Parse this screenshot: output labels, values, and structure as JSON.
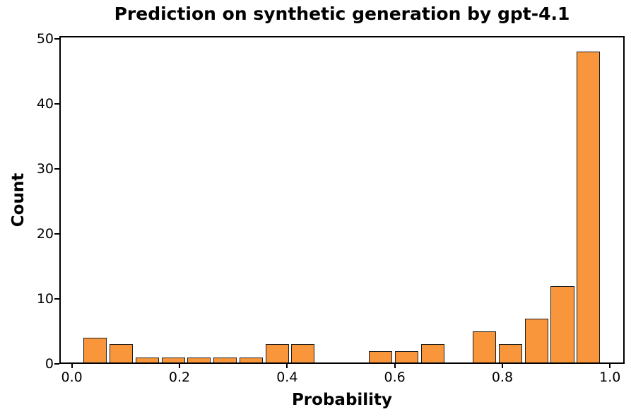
{
  "chart_data": {
    "type": "histogram",
    "title": "Prediction on synthetic generation by gpt-4.1",
    "xlabel": "Probability",
    "ylabel": "Count",
    "bar_color": "#F9963B",
    "bar_edge_color": "#1c1c1c",
    "background_color": "#ffffff",
    "bin_start": 0.0196,
    "bin_width": 0.04822,
    "rwidth": 0.9,
    "counts": [
      4,
      3,
      1,
      1,
      1,
      1,
      1,
      3,
      3,
      0,
      0,
      2,
      2,
      3,
      0,
      5,
      3,
      7,
      12,
      48
    ],
    "bin_edges": [
      0.02,
      0.068,
      0.116,
      0.164,
      0.213,
      0.261,
      0.309,
      0.357,
      0.405,
      0.454,
      0.502,
      0.55,
      0.598,
      0.646,
      0.695,
      0.743,
      0.791,
      0.839,
      0.887,
      0.936,
      0.984
    ],
    "xlim": [
      -0.0232,
      1.0272
    ],
    "ylim": [
      0,
      50.4
    ],
    "x_ticks": {
      "values": [
        0.0,
        0.2,
        0.4,
        0.6,
        0.8,
        1.0
      ],
      "labels": [
        "0.0",
        "0.2",
        "0.4",
        "0.6",
        "0.8",
        "1.0"
      ]
    },
    "y_ticks": {
      "values": [
        0,
        10,
        20,
        30,
        40,
        50
      ],
      "labels": [
        "0",
        "10",
        "20",
        "30",
        "40",
        "50"
      ]
    },
    "grid": false,
    "legend_position": null
  }
}
